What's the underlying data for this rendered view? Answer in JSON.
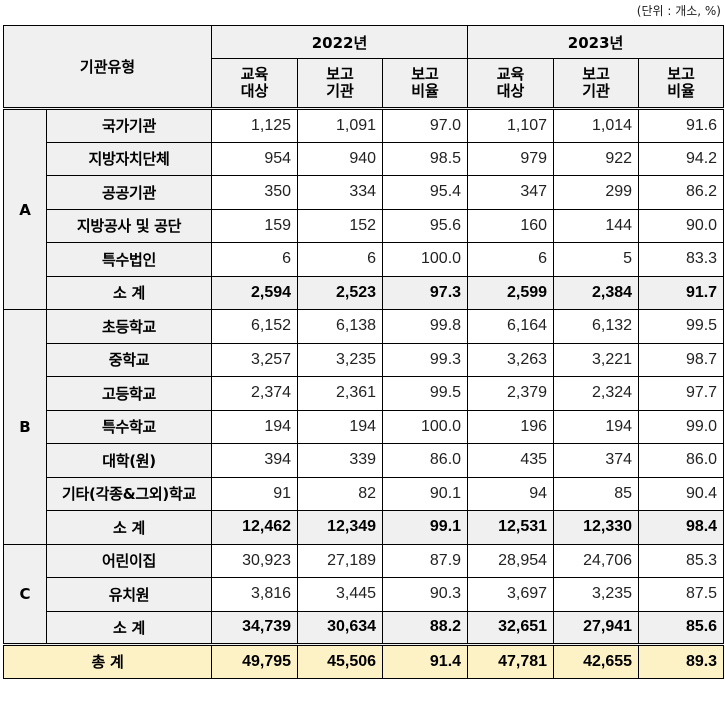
{
  "unit_label": "(단위 : 개소, %)",
  "header": {
    "category": "기관유형",
    "years": [
      "2022년",
      "2023년"
    ],
    "columns": [
      {
        "line1": "교육",
        "line2": "대상"
      },
      {
        "line1": "보고",
        "line2": "기관"
      },
      {
        "line1": "보고",
        "line2": "비율"
      }
    ]
  },
  "groups": [
    {
      "label": "A",
      "rows": [
        {
          "name": "국가기관",
          "v": [
            "1,125",
            "1,091",
            "97.0",
            "1,107",
            "1,014",
            "91.6"
          ]
        },
        {
          "name": "지방자치단체",
          "v": [
            "954",
            "940",
            "98.5",
            "979",
            "922",
            "94.2"
          ]
        },
        {
          "name": "공공기관",
          "v": [
            "350",
            "334",
            "95.4",
            "347",
            "299",
            "86.2"
          ]
        },
        {
          "name": "지방공사 및 공단",
          "v": [
            "159",
            "152",
            "95.6",
            "160",
            "144",
            "90.0"
          ]
        },
        {
          "name": "특수법인",
          "v": [
            "6",
            "6",
            "100.0",
            "6",
            "5",
            "83.3"
          ]
        }
      ],
      "subtotal": {
        "name": "소 계",
        "v": [
          "2,594",
          "2,523",
          "97.3",
          "2,599",
          "2,384",
          "91.7"
        ]
      }
    },
    {
      "label": "B",
      "rows": [
        {
          "name": "초등학교",
          "v": [
            "6,152",
            "6,138",
            "99.8",
            "6,164",
            "6,132",
            "99.5"
          ]
        },
        {
          "name": "중학교",
          "v": [
            "3,257",
            "3,235",
            "99.3",
            "3,263",
            "3,221",
            "98.7"
          ]
        },
        {
          "name": "고등학교",
          "v": [
            "2,374",
            "2,361",
            "99.5",
            "2,379",
            "2,324",
            "97.7"
          ]
        },
        {
          "name": "특수학교",
          "v": [
            "194",
            "194",
            "100.0",
            "196",
            "194",
            "99.0"
          ]
        },
        {
          "name": "대학(원)",
          "v": [
            "394",
            "339",
            "86.0",
            "435",
            "374",
            "86.0"
          ]
        },
        {
          "name": "기타(각종&그외)학교",
          "v": [
            "91",
            "82",
            "90.1",
            "94",
            "85",
            "90.4"
          ]
        }
      ],
      "subtotal": {
        "name": "소 계",
        "v": [
          "12,462",
          "12,349",
          "99.1",
          "12,531",
          "12,330",
          "98.4"
        ]
      }
    },
    {
      "label": "C",
      "rows": [
        {
          "name": "어린이집",
          "v": [
            "30,923",
            "27,189",
            "87.9",
            "28,954",
            "24,706",
            "85.3"
          ]
        },
        {
          "name": "유치원",
          "v": [
            "3,816",
            "3,445",
            "90.3",
            "3,697",
            "3,235",
            "87.5"
          ]
        }
      ],
      "subtotal": {
        "name": "소 계",
        "v": [
          "34,739",
          "30,634",
          "88.2",
          "32,651",
          "27,941",
          "85.6"
        ]
      }
    }
  ],
  "total": {
    "name": "총 계",
    "v": [
      "49,795",
      "45,506",
      "91.4",
      "47,781",
      "42,655",
      "89.3"
    ]
  },
  "colors": {
    "header_bg": "#f0f0f0",
    "total_bg": "#fdf1c6"
  }
}
